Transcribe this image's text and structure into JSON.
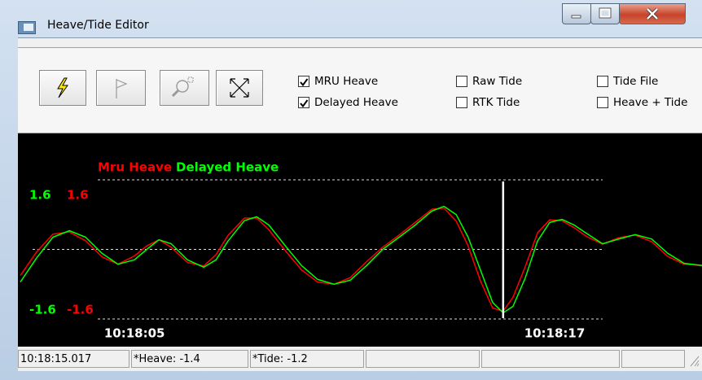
{
  "window": {
    "title": "Heave/Tide Editor"
  },
  "toolbar": {
    "checkboxes": [
      {
        "label": "MRU Heave",
        "checked": true
      },
      {
        "label": "Delayed Heave",
        "checked": true
      },
      {
        "label": "Raw Tide",
        "checked": false
      },
      {
        "label": "RTK Tide",
        "checked": false
      },
      {
        "label": "Tide File",
        "checked": false
      },
      {
        "label": "Heave + Tide",
        "checked": false
      }
    ]
  },
  "chart_data": {
    "type": "line",
    "x": [
      1.74,
      2.21,
      2.67,
      3.14,
      3.6,
      4.07,
      4.53,
      5.0,
      5.35,
      5.7,
      6.05,
      6.51,
      6.98,
      7.33,
      7.67,
      8.14,
      8.49,
      8.84,
      9.3,
      9.77,
      10.23,
      10.7,
      11.16,
      11.63,
      12.09,
      12.56,
      13.02,
      13.49,
      13.84,
      14.19,
      14.53,
      14.88,
      15.23,
      15.53,
      15.81,
      16.16,
      16.51,
      16.86,
      17.21,
      17.56,
      17.91,
      18.37,
      18.84,
      19.3,
      19.77,
      20.23,
      20.7,
      21.21
    ],
    "xlim": [
      1.74,
      21.21
    ],
    "xticks": [
      {
        "value": 5,
        "label": "10:18:05"
      },
      {
        "value": 17,
        "label": "10:18:17"
      }
    ],
    "ylim": [
      -1.6,
      1.6
    ],
    "yticks": [
      -1.6,
      1.6
    ],
    "y2lim": [
      -1.6,
      1.6
    ],
    "y2ticks": [
      -1.6,
      1.6
    ],
    "cursor_x": 15.53,
    "grid": true,
    "series": [
      {
        "name": "Mru Heave",
        "color": "#ff0000",
        "axis": "y2",
        "values": [
          -0.6,
          -0.05,
          0.35,
          0.4,
          0.2,
          -0.17,
          -0.34,
          -0.15,
          0.08,
          0.22,
          0.05,
          -0.3,
          -0.38,
          -0.12,
          0.32,
          0.72,
          0.72,
          0.45,
          -0.02,
          -0.47,
          -0.75,
          -0.8,
          -0.65,
          -0.28,
          0.05,
          0.33,
          0.62,
          0.92,
          0.95,
          0.65,
          0.08,
          -0.72,
          -1.35,
          -1.42,
          -1.1,
          -0.4,
          0.38,
          0.68,
          0.66,
          0.5,
          0.3,
          0.12,
          0.27,
          0.33,
          0.18,
          -0.16,
          -0.34,
          -0.37
        ]
      },
      {
        "name": "Delayed Heave",
        "color": "#00ff00",
        "values": [
          -0.75,
          -0.19,
          0.28,
          0.43,
          0.28,
          -0.09,
          -0.34,
          -0.24,
          0,
          0.22,
          0.13,
          -0.24,
          -0.41,
          -0.24,
          0.19,
          0.66,
          0.75,
          0.56,
          0.09,
          -0.37,
          -0.69,
          -0.8,
          -0.71,
          -0.37,
          0,
          0.28,
          0.56,
          0.88,
          0.99,
          0.8,
          0.28,
          -0.47,
          -1.22,
          -1.46,
          -1.31,
          -0.66,
          0.19,
          0.62,
          0.69,
          0.56,
          0.37,
          0.13,
          0.24,
          0.34,
          0.24,
          -0.09,
          -0.32,
          -0.37
        ]
      }
    ]
  },
  "status_bar": [
    "10:18:15.017",
    "*Heave: -1.4",
    "*Tide: -1.2"
  ]
}
